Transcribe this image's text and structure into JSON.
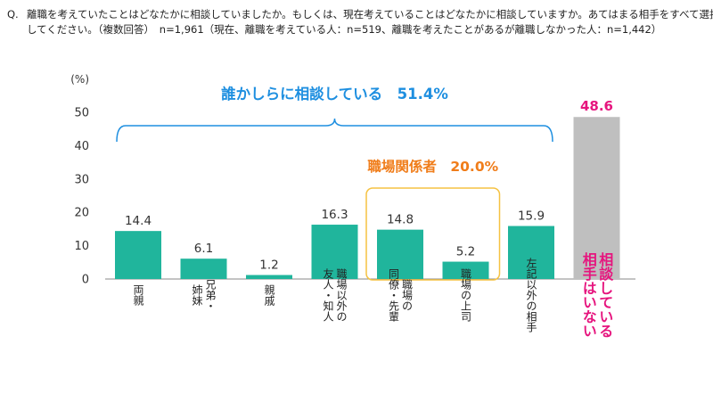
{
  "question": {
    "prefix": "Q.",
    "line1": "離職を考えていたことはどなたかに相談していましたか。もしくは、現在考えていることはどなたかに相談していますか。あてはまる相手をすべて選択",
    "line2": "してください。（複数回答）　n=1,961（現在、離職を考えている人：n=519、離職を考えたことがあるが離職しなかった人：n=1,442）"
  },
  "chart_data": {
    "type": "bar",
    "ylabel": "(%)",
    "ylim": [
      0,
      50
    ],
    "yticks": [
      0,
      10,
      20,
      30,
      40,
      50
    ],
    "grid": false,
    "categories": [
      "両親",
      "兄弟・姉妹",
      "親戚",
      "職場以外の友人・知人",
      "職場の同僚・先輩",
      "職場の上司",
      "左記以外の相手",
      "相談している相手はいない"
    ],
    "category_label_columns": [
      [
        "両親"
      ],
      [
        "兄弟・",
        "姉妹"
      ],
      [
        "親戚"
      ],
      [
        "職場以外の",
        "友人・知人"
      ],
      [
        "職場の",
        "同僚・先輩"
      ],
      [
        "職場の上司"
      ],
      [
        "左記以外の相手"
      ],
      [
        "相談している",
        "相手はいない"
      ]
    ],
    "values": [
      14.4,
      6.1,
      1.2,
      16.3,
      14.8,
      5.2,
      15.9,
      48.6
    ],
    "value_labels": [
      "14.4",
      "6.1",
      "1.2",
      "16.3",
      "14.8",
      "5.2",
      "15.9",
      "48.6"
    ],
    "bar_colors": [
      "#20b59c",
      "#20b59c",
      "#20b59c",
      "#20b59c",
      "#20b59c",
      "#20b59c",
      "#20b59c",
      "#bfbfbf"
    ],
    "annotations": {
      "consulted": {
        "text": "誰かしらに相談している　51.4%",
        "color": "#1e8fe0"
      },
      "workplace": {
        "text": "職場関係者　20.0%",
        "color": "#f07d1a",
        "box_color": "#f5c242"
      },
      "highlight_color": "#e6157e"
    }
  }
}
